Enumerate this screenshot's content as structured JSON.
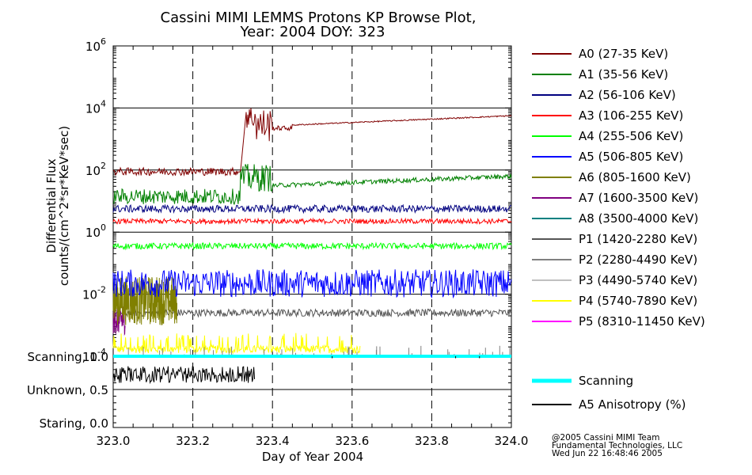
{
  "title_line1": "Cassini MIMI LEMMS Protons KP Browse Plot,",
  "title_line2": "Year: 2004 DOY: 323",
  "credits": [
    "@2005 Cassini MIMI Team",
    "Fundamental Technologies, LLC",
    "Wed Jun 22 16:48:46 2005"
  ],
  "chart_data": {
    "type": "line",
    "title": "Cassini MIMI LEMMS Protons KP Browse Plot, Year: 2004 DOY: 323",
    "xlabel": "Day of Year 2004",
    "ylabel_line1": "Differential Flux",
    "ylabel_line2": "counts/(cm^2*sr*KeV*sec)",
    "xlim": [
      323.0,
      324.0
    ],
    "ylim_log": [
      -4,
      6
    ],
    "y_scale": "log",
    "x_ticks": [
      "323.0",
      "323.2",
      "323.4",
      "323.6",
      "323.8",
      "324.0"
    ],
    "x_tick_values": [
      323.0,
      323.2,
      323.4,
      323.6,
      323.8,
      324.0
    ],
    "y_tick_bases": [
      "10",
      "10",
      "10",
      "10",
      "10",
      "10"
    ],
    "y_tick_exps": [
      "-4",
      "-2",
      "0",
      "2",
      "4",
      "6"
    ],
    "y_tick_values": [
      -4,
      -2,
      0,
      2,
      4,
      6
    ],
    "mode_panel": {
      "labels": [
        "Scanning, 1.0",
        "Unknown, 0.5",
        "Staring, 0.0"
      ],
      "values": [
        1.0,
        0.5,
        0.0
      ]
    },
    "series": [
      {
        "name": "A0 (27-35 KeV)",
        "color": "#800000",
        "kind": "a0"
      },
      {
        "name": "A1 (35-56 KeV)",
        "color": "#008000",
        "kind": "a1"
      },
      {
        "name": "A2 (56-106 KeV)",
        "color": "#000080",
        "level": 0.75,
        "noise": 0.12
      },
      {
        "name": "A3 (106-255 KeV)",
        "color": "#ff0000",
        "level": 0.35,
        "noise": 0.08
      },
      {
        "name": "A4 (255-506 KeV)",
        "color": "#00ff00",
        "level": -0.45,
        "noise": 0.1
      },
      {
        "name": "A5 (506-805 KeV)",
        "color": "#0000ff",
        "level": -1.65,
        "noise": 0.45
      },
      {
        "name": "A6 (805-1600 KeV)",
        "color": "#808000",
        "kind": "a6"
      },
      {
        "name": "A7 (1600-3500 KeV)",
        "color": "#800080",
        "kind": "a7"
      },
      {
        "name": "A8 (3500-4000 KeV)",
        "color": "#008080",
        "kind": "none"
      },
      {
        "name": "P1 (1420-2280 KeV)",
        "color": "#555555",
        "level": -2.6,
        "noise": 0.12
      },
      {
        "name": "P2 (2280-4490 KeV)",
        "color": "#808080",
        "kind": "spikes"
      },
      {
        "name": "P3 (4490-5740 KeV)",
        "color": "#c0c0c0",
        "kind": "none"
      },
      {
        "name": "P4 (5740-7890 KeV)",
        "color": "#ffff00",
        "kind": "p4"
      },
      {
        "name": "P5 (8310-11450 KeV)",
        "color": "#ff00ff",
        "kind": "none"
      }
    ],
    "mode_series": [
      {
        "name": "Scanning",
        "color": "#00ffff"
      },
      {
        "name": "A5 Anisotropy (%)",
        "color": "#000000"
      }
    ]
  }
}
